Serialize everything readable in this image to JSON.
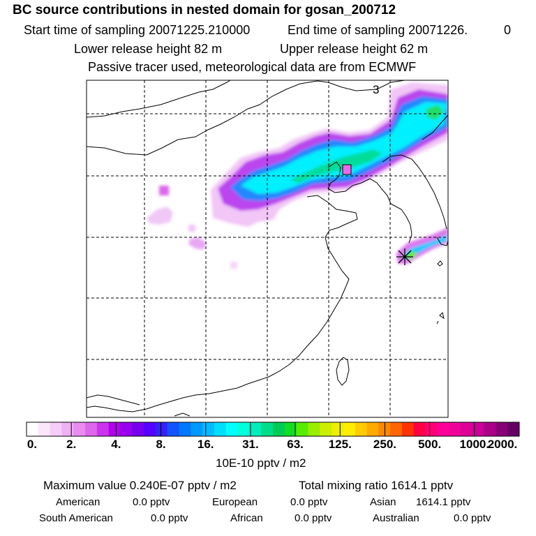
{
  "header": {
    "title": "BC  source contributions in nested domain for gosan_200712",
    "start_time": "Start time of sampling 20071225.210000",
    "end_time": "End time of sampling 20071226.",
    "end_time_suffix": "0",
    "lower_release": "Lower release height   82 m",
    "upper_release": "Upper release height   62 m",
    "tracer_note": "Passive tracer used, meteorological data are from ECMWF"
  },
  "map": {
    "panel_number": "3",
    "receptor_marker": "gosan-receptor"
  },
  "colorbar": {
    "labels": [
      "0.",
      "2.",
      "4.",
      "8.",
      "16.",
      "31.",
      "63.",
      "125.",
      "250.",
      "500.",
      "1000.",
      "2000."
    ],
    "colors": [
      "#ffffff",
      "#fbe6fc",
      "#f6ccf8",
      "#f0b0f4",
      "#e88cf0",
      "#dd66ec",
      "#cc33ee",
      "#b300ee",
      "#9900ee",
      "#7700ee",
      "#5500ff",
      "#3322ff",
      "#1155ff",
      "#0077ff",
      "#0099ff",
      "#00bbff",
      "#00ddff",
      "#00ffff",
      "#00ffdd",
      "#00eebb",
      "#00dd88",
      "#00cc55",
      "#11dd22",
      "#55ee00",
      "#99ee00",
      "#ccee00",
      "#eeee00",
      "#ffee00",
      "#ffcc00",
      "#ffaa00",
      "#ff8800",
      "#ff6600",
      "#ff3300",
      "#ff0044",
      "#ff0077",
      "#ff0099",
      "#ee0099",
      "#dd0099",
      "#cc0099",
      "#aa0088",
      "#880077",
      "#660066"
    ],
    "unit": "10E-10 pptv / m2"
  },
  "summary": {
    "max_value": "Maximum value  0.240E-07 pptv / m2",
    "total_mixing": "Total mixing ratio     1614.1 pptv"
  },
  "regions": {
    "american_label": "American",
    "american_value": "0.0 pptv",
    "european_label": "European",
    "european_value": "0.0 pptv",
    "asian_label": "Asian",
    "asian_value": "1614.1 pptv",
    "south_american_label": "South American",
    "south_american_value": "0.0 pptv",
    "african_label": "African",
    "african_value": "0.0 pptv",
    "australian_label": "Australian",
    "australian_value": "0.0 pptv"
  }
}
